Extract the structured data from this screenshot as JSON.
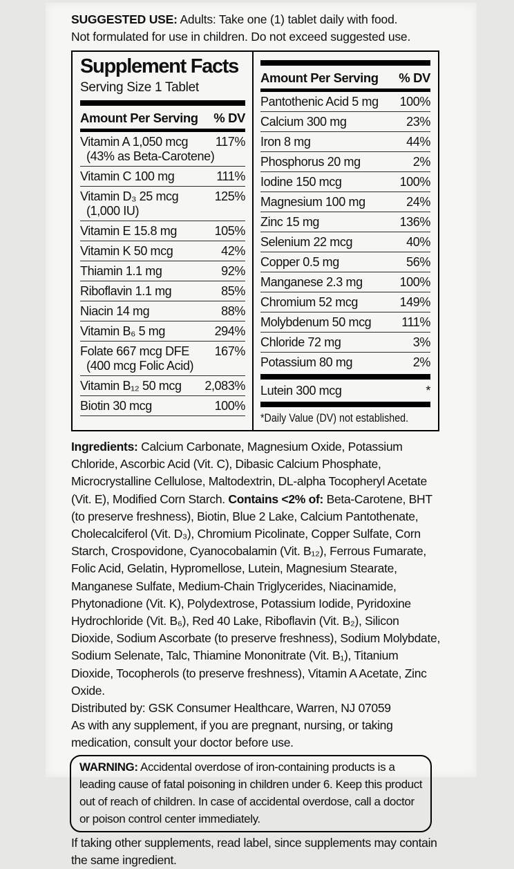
{
  "page": {
    "background_color": "#e7e7e5",
    "label_background_color": "#f6f6f4",
    "text_color": "#101010"
  },
  "suggested_use": {
    "label": "SUGGESTED USE:",
    "line1_rest": " Adults: Take one (1) tablet daily with food.",
    "line2": "Not formulated for use in children. Do not exceed suggested use."
  },
  "facts": {
    "title": "Supplement Facts",
    "serving_size": "Serving Size 1 Tablet",
    "header": {
      "amount": "Amount Per Serving",
      "dv": "% DV"
    },
    "left_rows": [
      {
        "name": "Vitamin A 1,050 mcg",
        "note": "(43% as Beta-Carotene)",
        "dv": "117%"
      },
      {
        "name": "Vitamin C 100 mg",
        "dv": "111%"
      },
      {
        "name": "Vitamin D₃ 25 mcg",
        "note": "(1,000 IU)",
        "dv": "125%"
      },
      {
        "name": "Vitamin E 15.8 mg",
        "dv": "105%"
      },
      {
        "name": "Vitamin K 50 mcg",
        "dv": "42%"
      },
      {
        "name": "Thiamin 1.1 mg",
        "dv": "92%"
      },
      {
        "name": "Riboflavin 1.1 mg",
        "dv": "85%"
      },
      {
        "name": "Niacin 14 mg",
        "dv": "88%"
      },
      {
        "name": "Vitamin B₆ 5 mg",
        "dv": "294%"
      },
      {
        "name": "Folate 667 mcg DFE",
        "note": "(400 mcg Folic Acid)",
        "dv": "167%"
      },
      {
        "name": "Vitamin B₁₂ 50 mcg",
        "dv": "2,083%"
      },
      {
        "name": "Biotin 30 mcg",
        "dv": "100%"
      }
    ],
    "right_rows": [
      {
        "name": "Pantothenic Acid 5 mg",
        "dv": "100%"
      },
      {
        "name": "Calcium 300 mg",
        "dv": "23%"
      },
      {
        "name": "Iron 8 mg",
        "dv": "44%"
      },
      {
        "name": "Phosphorus 20 mg",
        "dv": "2%"
      },
      {
        "name": "Iodine 150 mcg",
        "dv": "100%"
      },
      {
        "name": "Magnesium 100 mg",
        "dv": "24%"
      },
      {
        "name": "Zinc 15 mg",
        "dv": "136%"
      },
      {
        "name": "Selenium 22 mcg",
        "dv": "40%"
      },
      {
        "name": "Copper 0.5 mg",
        "dv": "56%"
      },
      {
        "name": "Manganese 2.3 mg",
        "dv": "100%"
      },
      {
        "name": "Chromium 52 mcg",
        "dv": "149%"
      },
      {
        "name": "Molybdenum 50 mcg",
        "dv": "111%"
      },
      {
        "name": "Chloride 72 mg",
        "dv": "3%"
      },
      {
        "name": "Potassium 80 mg",
        "dv": "2%"
      }
    ],
    "lutein_row": {
      "name": "Lutein 300 mcg",
      "dv": "*"
    },
    "footnote": "*Daily Value (DV) not established."
  },
  "ingredients": {
    "label": "Ingredients:",
    "part1": " Calcium Carbonate, Magnesium Oxide, Potassium Chloride, Ascorbic Acid (Vit. C), Dibasic Calcium Phosphate, Microcrystalline Cellulose, Maltodextrin, DL-alpha Tocopheryl Acetate (Vit. E), Modified Corn Starch. ",
    "contains_label": "Contains <2% of:",
    "part2": " Beta-Carotene, BHT (to preserve freshness), Biotin, Blue 2 Lake, Calcium Pantothenate, Cholecalciferol (Vit. D₃), Chromium Picolinate, Copper Sulfate, Corn Starch, Crospovidone, Cyanocobalamin (Vit. B₁₂), Ferrous Fumarate, Folic Acid, Gelatin, Hypromellose, Lutein, Magnesium Stearate, Manganese Sulfate, Medium-Chain Triglycerides, Niacinamide, Phytonadione (Vit. K), Polydextrose, Potassium Iodide, Pyridoxine Hydrochloride (Vit. B₆), Red 40 Lake, Riboflavin (Vit. B₂), Silicon Dioxide, Sodium Ascorbate (to preserve freshness), Sodium Molybdate, Sodium Selenate, Talc, Thiamine Mononitrate (Vit. B₁), Titanium Dioxide, Tocopherols (to preserve freshness), Vitamin A Acetate, Zinc Oxide."
  },
  "distribution": {
    "distributed_by": "Distributed by: GSK Consumer Healthcare, Warren, NJ 07059",
    "supplement_note": "As with any supplement, if you are pregnant, nursing, or taking medication, consult your doctor before use."
  },
  "warning": {
    "label": "WARNING:",
    "text": " Accidental overdose of iron-containing products is a leading cause of fatal poisoning in children under 6. Keep this product out of reach of children. In case of accidental overdose, call a doctor or poison control center immediately."
  },
  "footer_note": "If taking other supplements, read label, since supplements may contain the same ingredient."
}
